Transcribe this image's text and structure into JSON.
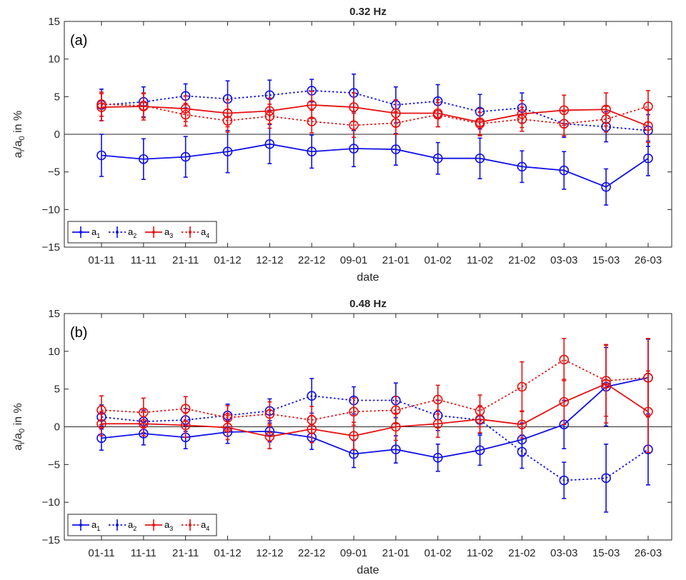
{
  "chart_data": [
    {
      "type": "line",
      "title": "0.32 Hz",
      "panel_label": "(a)",
      "xlabel": "date",
      "ylabel_main": "a",
      "ylabel_sub1": "i",
      "ylabel_mid": "/a",
      "ylabel_sub2": "0",
      "ylabel_tail": " in %",
      "ylim": [
        -15,
        15
      ],
      "yticks": [
        -15,
        -10,
        -5,
        0,
        5,
        10,
        15
      ],
      "grid": false,
      "legend_position": "bottom-left",
      "categories": [
        "01-11",
        "11-11",
        "21-11",
        "01-12",
        "12-12",
        "22-12",
        "09-01",
        "21-01",
        "01-02",
        "11-02",
        "21-02",
        "03-03",
        "15-03",
        "26-03"
      ],
      "series": [
        {
          "name": "a",
          "name_sub": "1",
          "color": "#1010e6",
          "dash": "solid",
          "values": [
            -2.8,
            -3.3,
            -3.0,
            -2.3,
            -1.3,
            -2.3,
            -1.9,
            -2.0,
            -3.2,
            -3.2,
            -4.3,
            -4.8,
            -7.0,
            -3.2
          ],
          "errors": [
            2.8,
            2.7,
            2.7,
            2.8,
            2.6,
            2.2,
            2.4,
            2.1,
            2.1,
            2.7,
            2.1,
            2.5,
            2.4,
            2.3
          ]
        },
        {
          "name": "a",
          "name_sub": "2",
          "color": "#1010e6",
          "dash": "dotted",
          "values": [
            3.9,
            4.3,
            5.1,
            4.7,
            5.2,
            5.8,
            5.5,
            3.9,
            4.4,
            3.0,
            3.5,
            1.4,
            1.0,
            0.5
          ],
          "errors": [
            2.1,
            2.0,
            1.6,
            2.4,
            2.0,
            1.5,
            2.5,
            2.4,
            2.2,
            2.3,
            2.0,
            1.8,
            2.0,
            2.1
          ]
        },
        {
          "name": "a",
          "name_sub": "3",
          "color": "#e61010",
          "dash": "solid",
          "values": [
            3.6,
            3.7,
            3.4,
            2.8,
            3.1,
            3.9,
            3.6,
            2.8,
            2.8,
            1.6,
            2.7,
            3.2,
            3.3,
            1.1
          ],
          "errors": [
            1.8,
            1.8,
            1.7,
            1.8,
            1.7,
            1.8,
            1.9,
            1.8,
            1.8,
            1.8,
            1.8,
            2.0,
            2.2,
            2.2
          ]
        },
        {
          "name": "a",
          "name_sub": "4",
          "color": "#e61010",
          "dash": "dotted",
          "values": [
            4.0,
            3.8,
            2.6,
            1.8,
            2.4,
            1.7,
            1.2,
            1.5,
            2.6,
            1.4,
            2.0,
            1.4,
            2.0,
            3.7
          ],
          "errors": [
            1.6,
            1.6,
            1.5,
            1.5,
            1.6,
            1.5,
            1.6,
            1.5,
            1.6,
            1.5,
            1.6,
            1.6,
            1.7,
            2.1
          ]
        }
      ]
    },
    {
      "type": "line",
      "title": "0.48 Hz",
      "panel_label": "(b)",
      "xlabel": "date",
      "ylabel_main": "a",
      "ylabel_sub1": "i",
      "ylabel_mid": "/a",
      "ylabel_sub2": "0",
      "ylabel_tail": " in %",
      "ylim": [
        -15,
        15
      ],
      "yticks": [
        -15,
        -10,
        -5,
        0,
        5,
        10,
        15
      ],
      "grid": false,
      "legend_position": "bottom-left",
      "categories": [
        "01-11",
        "11-11",
        "21-11",
        "01-12",
        "12-12",
        "22-12",
        "09-01",
        "21-01",
        "01-02",
        "11-02",
        "21-02",
        "03-03",
        "15-03",
        "26-03"
      ],
      "series": [
        {
          "name": "a",
          "name_sub": "1",
          "color": "#1010e6",
          "dash": "solid",
          "values": [
            -1.5,
            -0.9,
            -1.4,
            -0.7,
            -0.6,
            -1.4,
            -3.6,
            -3.0,
            -4.1,
            -3.1,
            -1.7,
            0.3,
            5.3,
            6.5
          ],
          "errors": [
            1.6,
            1.5,
            1.5,
            1.5,
            1.4,
            1.6,
            1.8,
            1.8,
            1.8,
            2.0,
            2.2,
            3.2,
            5.2,
            5.1
          ]
        },
        {
          "name": "a",
          "name_sub": "2",
          "color": "#1010e6",
          "dash": "dotted",
          "values": [
            1.3,
            0.7,
            0.9,
            1.5,
            2.1,
            4.1,
            3.5,
            3.5,
            1.5,
            0.9,
            -3.3,
            -7.1,
            -6.8,
            -3.0
          ],
          "errors": [
            1.6,
            1.5,
            1.5,
            1.5,
            1.6,
            2.3,
            1.8,
            2.3,
            2.0,
            1.8,
            2.2,
            2.4,
            4.5,
            4.7
          ]
        },
        {
          "name": "a",
          "name_sub": "3",
          "color": "#e61010",
          "dash": "solid",
          "values": [
            0.4,
            0.4,
            0.2,
            -0.1,
            -1.3,
            -0.3,
            -1.2,
            0.0,
            0.4,
            1.0,
            0.3,
            3.3,
            5.7,
            2.0
          ],
          "errors": [
            1.6,
            1.6,
            1.6,
            1.6,
            1.6,
            1.8,
            1.8,
            1.8,
            1.8,
            1.8,
            1.8,
            3.0,
            5.2,
            5.4
          ]
        },
        {
          "name": "a",
          "name_sub": "4",
          "color": "#e61010",
          "dash": "dotted",
          "values": [
            2.2,
            1.9,
            2.4,
            1.2,
            1.7,
            0.9,
            2.0,
            2.2,
            3.6,
            2.1,
            5.3,
            8.9,
            6.1,
            6.5
          ],
          "errors": [
            1.9,
            1.9,
            1.6,
            1.6,
            1.6,
            1.8,
            1.8,
            1.8,
            1.9,
            2.1,
            3.3,
            2.8,
            4.7,
            5.2
          ]
        }
      ]
    }
  ]
}
